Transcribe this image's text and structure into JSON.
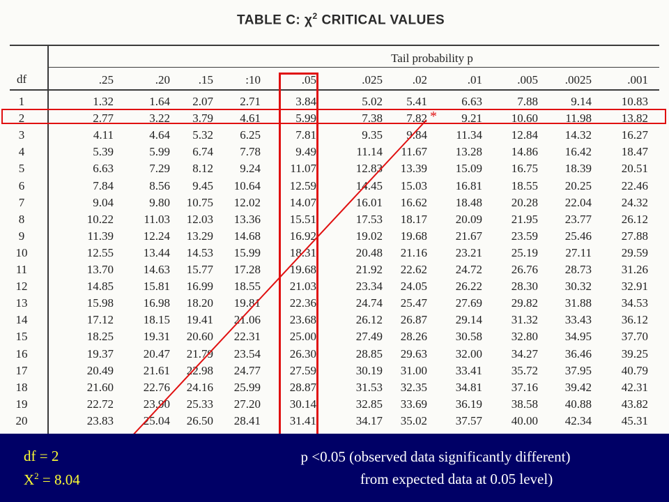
{
  "table": {
    "title_prefix": "TABLE C:",
    "title_chi": "χ",
    "title_exp": "2",
    "title_suffix": "CRITICAL VALUES",
    "caption": "Tail probability p",
    "df_header": "df",
    "p_headers": [
      ".25",
      ".20",
      ".15",
      ":10",
      ".05",
      ".025",
      ".02",
      ".01",
      ".005",
      ".0025",
      ".001"
    ],
    "rows": [
      {
        "df": "1",
        "values": [
          "1.32",
          "1.64",
          "2.07",
          "2.71",
          "3.84",
          "5.02",
          "5.41",
          "6.63",
          "7.88",
          "9.14",
          "10.83"
        ]
      },
      {
        "df": "2",
        "values": [
          "2.77",
          "3.22",
          "3.79",
          "4.61",
          "5.99",
          "7.38",
          "7.82",
          "9.21",
          "10.60",
          "11.98",
          "13.82"
        ]
      },
      {
        "df": "3",
        "values": [
          "4.11",
          "4.64",
          "5.32",
          "6.25",
          "7.81",
          "9.35",
          "9.84",
          "11.34",
          "12.84",
          "14.32",
          "16.27"
        ]
      },
      {
        "df": "4",
        "values": [
          "5.39",
          "5.99",
          "6.74",
          "7.78",
          "9.49",
          "11.14",
          "11.67",
          "13.28",
          "14.86",
          "16.42",
          "18.47"
        ]
      },
      {
        "df": "5",
        "values": [
          "6.63",
          "7.29",
          "8.12",
          "9.24",
          "11.07",
          "12.83",
          "13.39",
          "15.09",
          "16.75",
          "18.39",
          "20.51"
        ]
      },
      {
        "df": "6",
        "values": [
          "7.84",
          "8.56",
          "9.45",
          "10.64",
          "12.59",
          "14.45",
          "15.03",
          "16.81",
          "18.55",
          "20.25",
          "22.46"
        ]
      },
      {
        "df": "7",
        "values": [
          "9.04",
          "9.80",
          "10.75",
          "12.02",
          "14.07",
          "16.01",
          "16.62",
          "18.48",
          "20.28",
          "22.04",
          "24.32"
        ]
      },
      {
        "df": "8",
        "values": [
          "10.22",
          "11.03",
          "12.03",
          "13.36",
          "15.51",
          "17.53",
          "18.17",
          "20.09",
          "21.95",
          "23.77",
          "26.12"
        ]
      },
      {
        "df": "9",
        "values": [
          "11.39",
          "12.24",
          "13.29",
          "14.68",
          "16.92",
          "19.02",
          "19.68",
          "21.67",
          "23.59",
          "25.46",
          "27.88"
        ]
      },
      {
        "df": "10",
        "values": [
          "12.55",
          "13.44",
          "14.53",
          "15.99",
          "18.31",
          "20.48",
          "21.16",
          "23.21",
          "25.19",
          "27.11",
          "29.59"
        ]
      },
      {
        "df": "11",
        "values": [
          "13.70",
          "14.63",
          "15.77",
          "17.28",
          "19.68",
          "21.92",
          "22.62",
          "24.72",
          "26.76",
          "28.73",
          "31.26"
        ]
      },
      {
        "df": "12",
        "values": [
          "14.85",
          "15.81",
          "16.99",
          "18.55",
          "21.03",
          "23.34",
          "24.05",
          "26.22",
          "28.30",
          "30.32",
          "32.91"
        ]
      },
      {
        "df": "13",
        "values": [
          "15.98",
          "16.98",
          "18.20",
          "19.81",
          "22.36",
          "24.74",
          "25.47",
          "27.69",
          "29.82",
          "31.88",
          "34.53"
        ]
      },
      {
        "df": "14",
        "values": [
          "17.12",
          "18.15",
          "19.41",
          "21.06",
          "23.68",
          "26.12",
          "26.87",
          "29.14",
          "31.32",
          "33.43",
          "36.12"
        ]
      },
      {
        "df": "15",
        "values": [
          "18.25",
          "19.31",
          "20.60",
          "22.31",
          "25.00",
          "27.49",
          "28.26",
          "30.58",
          "32.80",
          "34.95",
          "37.70"
        ]
      },
      {
        "df": "16",
        "values": [
          "19.37",
          "20.47",
          "21.79",
          "23.54",
          "26.30",
          "28.85",
          "29.63",
          "32.00",
          "34.27",
          "36.46",
          "39.25"
        ]
      },
      {
        "df": "17",
        "values": [
          "20.49",
          "21.61",
          "22.98",
          "24.77",
          "27.59",
          "30.19",
          "31.00",
          "33.41",
          "35.72",
          "37.95",
          "40.79"
        ]
      },
      {
        "df": "18",
        "values": [
          "21.60",
          "22.76",
          "24.16",
          "25.99",
          "28.87",
          "31.53",
          "32.35",
          "34.81",
          "37.16",
          "39.42",
          "42.31"
        ]
      },
      {
        "df": "19",
        "values": [
          "22.72",
          "23.90",
          "25.33",
          "27.20",
          "30.14",
          "32.85",
          "33.69",
          "36.19",
          "38.58",
          "40.88",
          "43.82"
        ]
      },
      {
        "df": "20",
        "values": [
          "23.83",
          "25.04",
          "26.50",
          "28.41",
          "31.41",
          "34.17",
          "35.02",
          "37.57",
          "40.00",
          "42.34",
          "45.31"
        ]
      }
    ]
  },
  "annotations": {
    "asterisk": "*",
    "highlight_color": "#e01010"
  },
  "footer": {
    "background": "#000066",
    "df_note": "df = 2",
    "x2_prefix": "X",
    "x2_exp": "2",
    "x2_suffix": " = 8.04",
    "p_note_line1": "p <0.05 (observed data significantly different)",
    "p_note_line2": "from expected data at 0.05 level)"
  }
}
